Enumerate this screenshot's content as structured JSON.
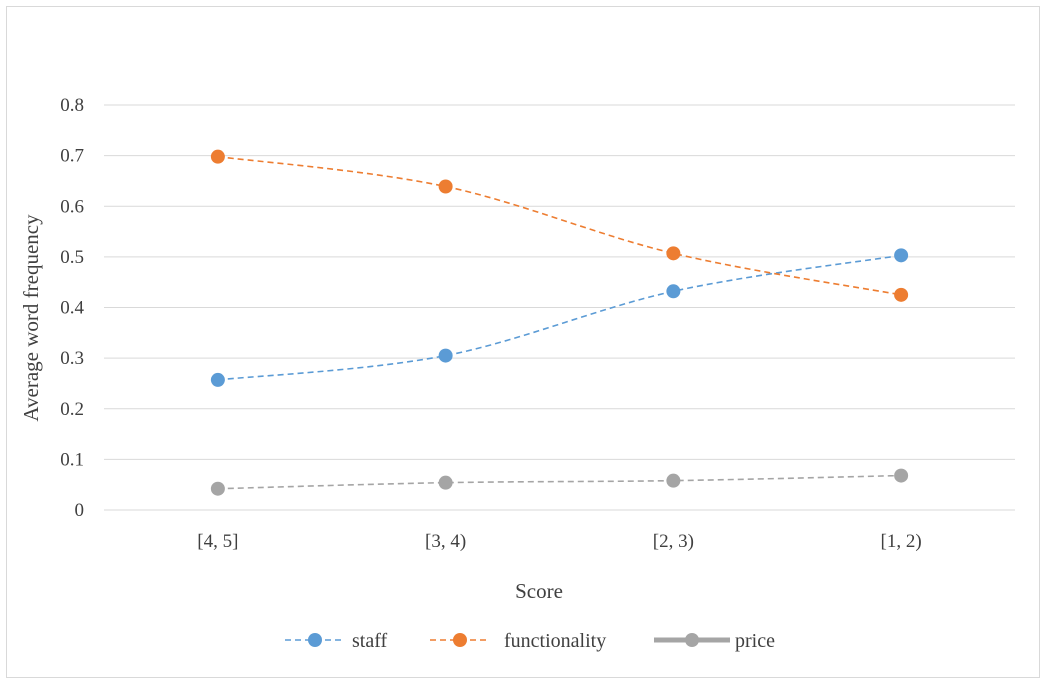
{
  "chart_data": {
    "type": "line",
    "title": "",
    "xlabel": "Score",
    "ylabel": "Average word frequency",
    "categories": [
      "[4, 5]",
      "[3, 4)",
      "[2, 3)",
      "[1, 2)"
    ],
    "ylim": [
      0,
      0.8
    ],
    "yticks": [
      "0",
      "0.1",
      "0.2",
      "0.3",
      "0.4",
      "0.5",
      "0.6",
      "0.7",
      "0.8"
    ],
    "grid": true,
    "legend": "bottom",
    "series": [
      {
        "name": "staff",
        "values": [
          0.257,
          0.305,
          0.432,
          0.503
        ],
        "color": "#5b9bd5",
        "line_style": "dashed"
      },
      {
        "name": "functionality",
        "values": [
          0.698,
          0.639,
          0.507,
          0.425
        ],
        "color": "#ed7d31",
        "line_style": "dashed"
      },
      {
        "name": "price",
        "values": [
          0.042,
          0.054,
          0.058,
          0.068
        ],
        "color": "#a5a5a5",
        "line_style": "dashed"
      }
    ]
  }
}
